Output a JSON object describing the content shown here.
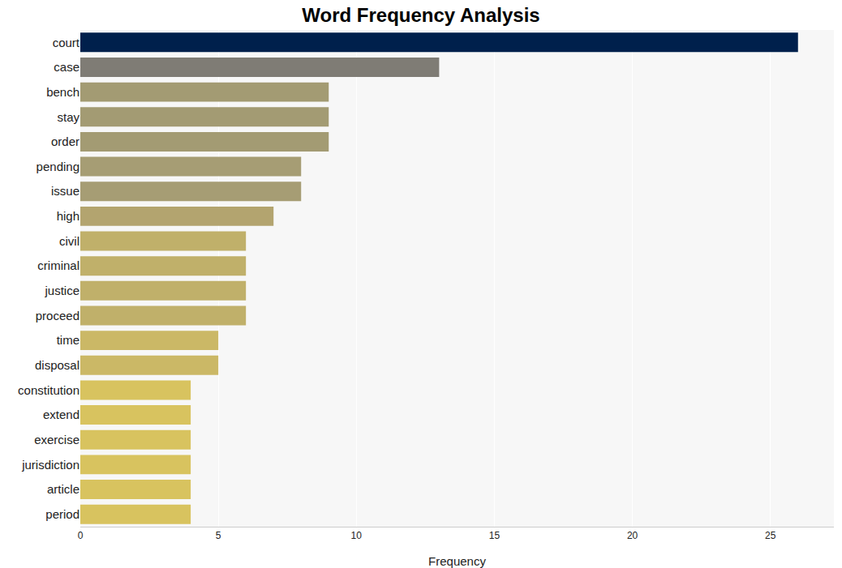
{
  "chart_data": {
    "type": "bar",
    "orientation": "horizontal",
    "title": "Word Frequency Analysis",
    "x_label": "Frequency",
    "categories": [
      "court",
      "case",
      "bench",
      "stay",
      "order",
      "pending",
      "issue",
      "high",
      "civil",
      "criminal",
      "justice",
      "proceed",
      "time",
      "disposal",
      "constitution",
      "extend",
      "exercise",
      "jurisdiction",
      "article",
      "period"
    ],
    "values": [
      26,
      13,
      9,
      9,
      9,
      8,
      8,
      7,
      6,
      6,
      6,
      6,
      5,
      5,
      4,
      4,
      4,
      4,
      4,
      4
    ],
    "colors": [
      "#00204c",
      "#7f7c75",
      "#a39b73",
      "#a39b73",
      "#a39b73",
      "#a69d74",
      "#a69d74",
      "#b3a46f",
      "#c0b06a",
      "#c0b06a",
      "#c0b06a",
      "#c0b06a",
      "#cbb866",
      "#cbb866",
      "#d8c35f",
      "#d8c35f",
      "#d8c35f",
      "#d8c35f",
      "#d8c35f",
      "#d8c35f"
    ],
    "xlim": [
      0,
      27.3
    ],
    "xticks": [
      0,
      5,
      10,
      15,
      20,
      25
    ],
    "grid": true
  }
}
